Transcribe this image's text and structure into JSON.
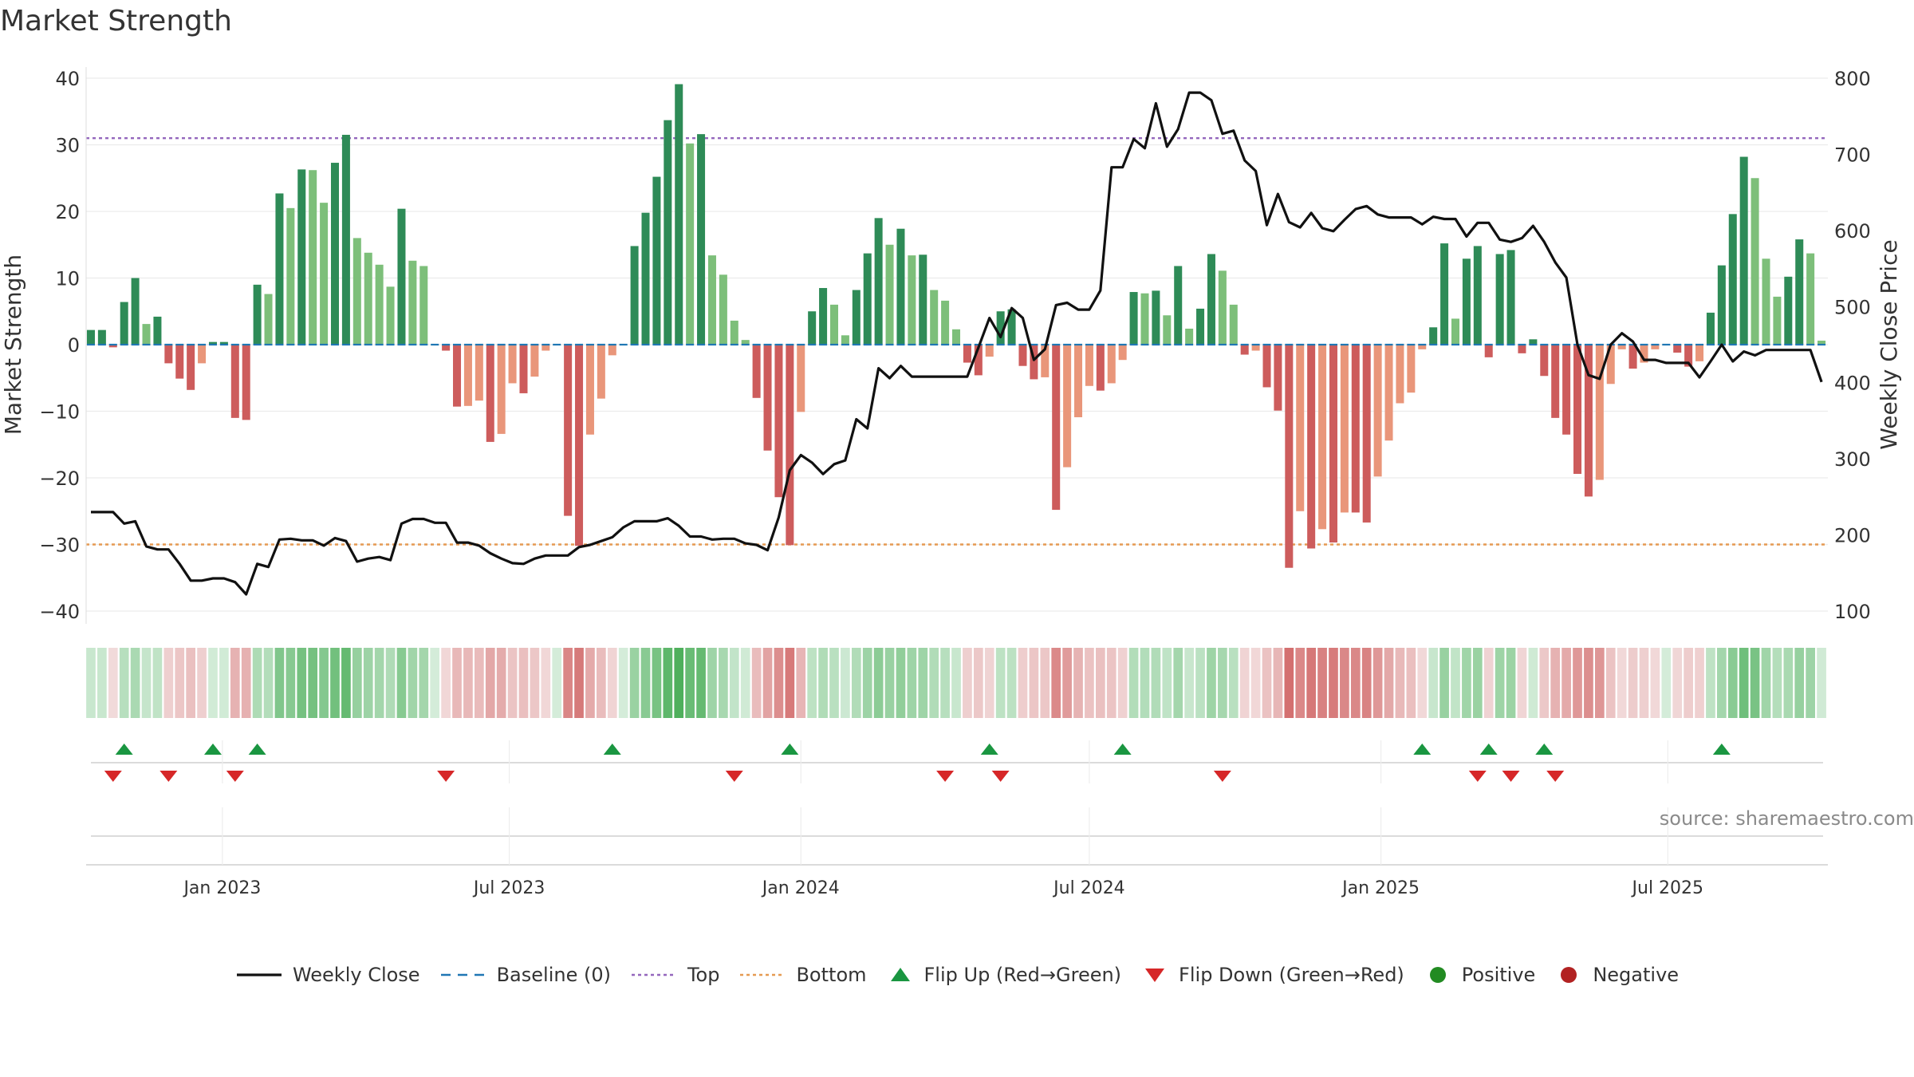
{
  "title": "Market Strength",
  "source": "source: sharemaestro.com",
  "legend": {
    "weekly_close": "Weekly Close",
    "baseline": "Baseline (0)",
    "top": "Top",
    "bottom": "Bottom",
    "flip_up": "Flip Up (Red→Green)",
    "flip_down": "Flip Down (Green→Red)",
    "positive": "Positive",
    "negative": "Negative"
  },
  "colors": {
    "strong_green": "#2e8b57",
    "light_green": "#7dbf7a",
    "strong_red": "#cd5c5c",
    "light_red": "#e9967a",
    "top_line": "#9467bd",
    "bottom_line": "#e59a52",
    "baseline": "#1f77b4",
    "close_line": "#111111",
    "flip_up": "#1a9641",
    "flip_down": "#d62728",
    "positive_dot": "#228b22",
    "negative_dot": "#b22222"
  },
  "chart_data": {
    "type": "bar",
    "ylabel": "Market Strength",
    "y2label": "Weekly Close Price",
    "ylim": [
      -40,
      40
    ],
    "y2lim": [
      100,
      800
    ],
    "yticks": [
      -40,
      -30,
      -20,
      -10,
      0,
      10,
      20,
      30,
      40
    ],
    "y2ticks": [
      100,
      200,
      300,
      400,
      500,
      600,
      700,
      800
    ],
    "top_level": 31,
    "bottom_level": -30,
    "baseline": 0,
    "start_date": "2022-10-10",
    "x_range": [
      "2022-10-07",
      "2025-10-10"
    ],
    "xticks": [
      {
        "date": "2023-01-01",
        "label": "Jan 2023"
      },
      {
        "date": "2023-07-01",
        "label": "Jul 2023"
      },
      {
        "date": "2024-01-01",
        "label": "Jan 2024"
      },
      {
        "date": "2024-07-01",
        "label": "Jul 2024"
      },
      {
        "date": "2025-01-01",
        "label": "Jan 2025"
      },
      {
        "date": "2025-07-01",
        "label": "Jul 2025"
      }
    ],
    "strength": [
      2.2,
      2.2,
      -0.4,
      6.4,
      10,
      3.1,
      4.2,
      -2.8,
      -5.1,
      -6.8,
      -2.8,
      0.4,
      0.4,
      -11,
      -11.3,
      9,
      7.6,
      22.7,
      20.5,
      26.3,
      26.2,
      21.3,
      27.3,
      31.5,
      16,
      13.8,
      12,
      8.7,
      20.4,
      12.6,
      11.8,
      0,
      -0.9,
      -9.3,
      -9.2,
      -8.4,
      -14.6,
      -13.4,
      -5.8,
      -7.3,
      -4.8,
      -0.9,
      0,
      -25.7,
      -30.2,
      -13.5,
      -8.1,
      -1.6,
      0,
      14.8,
      19.8,
      25.2,
      33.7,
      39.1,
      30.2,
      31.6,
      13.4,
      10.5,
      3.6,
      0.7,
      -8,
      -15.9,
      -22.9,
      -30.1,
      -10.1,
      5,
      8.5,
      6,
      1.4,
      8.2,
      13.7,
      19,
      15,
      17.4,
      13.4,
      13.5,
      8.2,
      6.6,
      2.3,
      -2.7,
      -4.6,
      -1.8,
      5,
      5.3,
      -3.2,
      -5.2,
      -4.9,
      -24.8,
      -18.4,
      -10.9,
      -6.2,
      -6.9,
      -5.8,
      -2.3,
      7.9,
      7.7,
      8.1,
      4.4,
      11.8,
      2.4,
      5.4,
      13.6,
      11.1,
      6,
      -1.5,
      -0.9,
      -6.4,
      -9.9,
      -33.5,
      -25,
      -30.6,
      -27.7,
      -29.7,
      -25.2,
      -25.2,
      -26.7,
      -19.8,
      -14.4,
      -8.8,
      -7.2,
      -0.7,
      2.6,
      15.2,
      3.9,
      12.9,
      14.8,
      -1.9,
      13.6,
      14.2,
      -1.3,
      0.8,
      -4.7,
      -11,
      -13.5,
      -19.4,
      -22.8,
      -20.3,
      -5.9,
      -0.7,
      -3.6,
      -2.7,
      -0.7,
      0,
      -1.2,
      -3.3,
      -2.5,
      4.8,
      11.9,
      19.6,
      28.2,
      25,
      12.9,
      7.2,
      10.2,
      15.8,
      13.7,
      0.6
    ],
    "close": [
      230,
      230,
      230,
      215,
      218,
      185,
      181,
      181,
      162,
      140,
      140,
      143,
      143,
      138,
      122,
      162,
      158,
      194,
      195,
      193,
      193,
      186,
      196,
      192,
      165,
      169,
      171,
      167,
      215,
      221,
      221,
      216,
      216,
      190,
      190,
      186,
      176,
      169,
      163,
      162,
      169,
      173,
      173,
      173,
      184,
      187,
      192,
      197,
      210,
      218,
      218,
      218,
      222,
      212,
      198,
      198,
      194,
      195,
      195,
      189,
      187,
      180,
      223,
      285,
      305,
      295,
      280,
      293,
      298,
      352,
      340,
      419,
      406,
      422,
      408,
      408,
      408,
      408,
      408,
      408,
      446,
      485,
      460,
      498,
      485,
      430,
      444,
      502,
      505,
      496,
      496,
      521,
      683,
      683,
      720,
      708,
      767,
      710,
      733,
      781,
      781,
      771,
      727,
      731,
      692,
      678,
      607,
      648,
      611,
      604,
      623,
      603,
      599,
      614,
      628,
      632,
      621,
      617,
      617,
      617,
      608,
      618,
      615,
      615,
      592,
      610,
      610,
      588,
      585,
      590,
      606,
      585,
      558,
      538,
      450,
      410,
      405,
      450,
      465,
      454,
      430,
      430,
      426,
      426,
      426,
      407,
      428,
      450,
      428,
      441,
      436,
      443,
      443,
      443,
      443,
      443,
      401
    ],
    "flip_up_weeks": [
      3,
      11,
      15,
      47,
      63,
      81,
      93,
      120,
      126,
      131,
      147
    ],
    "flip_down_weeks": [
      2,
      7,
      13,
      32,
      58,
      77,
      82,
      102,
      125,
      128,
      132
    ]
  }
}
